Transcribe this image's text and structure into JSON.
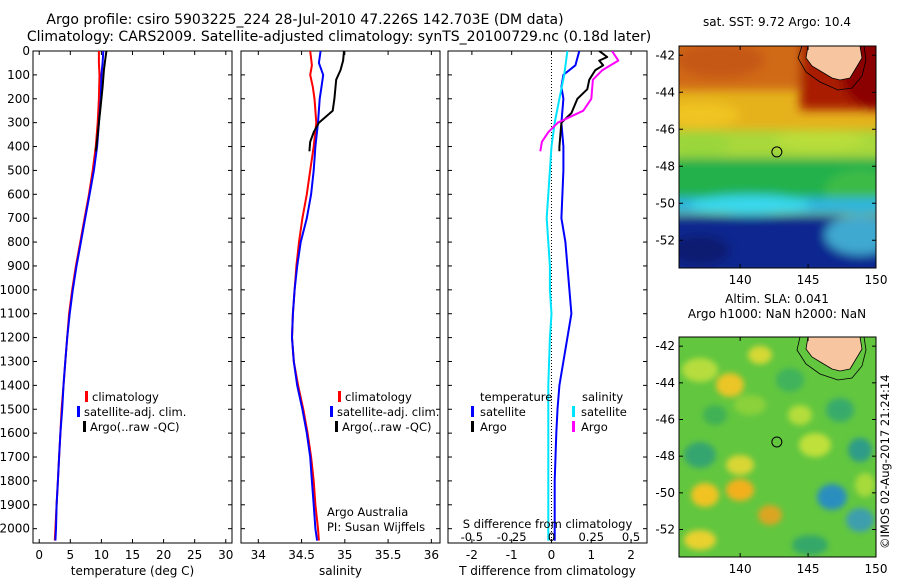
{
  "title_line1": "Argo profile: csiro 5903225_224 28-Jul-2010 47.226S 142.703E (DM data)",
  "title_line2": "Climatology: CARS2009. Satellite-adjusted climatology: synTS_20100729.nc (0.18d later)",
  "depth_ticks": [
    "0",
    "100",
    "200",
    "300",
    "400",
    "500",
    "600",
    "700",
    "800",
    "900",
    "1000",
    "1100",
    "1200",
    "1300",
    "1400",
    "1500",
    "1600",
    "1700",
    "1800",
    "1900",
    "2000"
  ],
  "legend_profile": [
    "climatology",
    "satellite-adj. clim.",
    "Argo(..raw -QC)"
  ],
  "legend_diff": {
    "temp_header": "temperature",
    "sal_header": "salinity",
    "temp_items": [
      "satellite",
      "Argo"
    ],
    "sal_items": [
      "satellite",
      "Argo"
    ]
  },
  "credit_line1": "Argo Australia",
  "credit_line2": "PI: Susan Wijffels",
  "colors": {
    "climatology": "#ff0000",
    "satellite_adj": "#0000ff",
    "argo": "#000000",
    "diff_T_sat": "#0000ff",
    "diff_T_argo": "#000000",
    "diff_S_sat": "#00e5ff",
    "diff_S_argo": "#ff00ff"
  },
  "chart_data": [
    {
      "type": "line",
      "xlabel": "temperature (deg C)",
      "ylabel": "",
      "xlim": [
        -1,
        31
      ],
      "ylim": [
        2060,
        0
      ],
      "x_ticks": [
        "0",
        "5",
        "10",
        "15",
        "20",
        "25",
        "30"
      ],
      "series": [
        {
          "name": "climatology",
          "points": [
            [
              9.6,
              0
            ],
            [
              9.6,
              50
            ],
            [
              9.7,
              100
            ],
            [
              9.6,
              200
            ],
            [
              9.4,
              300
            ],
            [
              9.1,
              400
            ],
            [
              8.6,
              500
            ],
            [
              8.0,
              600
            ],
            [
              7.3,
              700
            ],
            [
              6.6,
              800
            ],
            [
              5.9,
              900
            ],
            [
              5.3,
              1000
            ],
            [
              4.8,
              1100
            ],
            [
              4.5,
              1200
            ],
            [
              4.2,
              1300
            ],
            [
              3.9,
              1400
            ],
            [
              3.6,
              1500
            ],
            [
              3.4,
              1600
            ],
            [
              3.2,
              1700
            ],
            [
              3.0,
              1800
            ],
            [
              2.8,
              1900
            ],
            [
              2.6,
              2000
            ],
            [
              2.5,
              2050
            ]
          ]
        },
        {
          "name": "satellite-adj. clim.",
          "points": [
            [
              10.3,
              0
            ],
            [
              10.2,
              50
            ],
            [
              10.0,
              100
            ],
            [
              9.9,
              200
            ],
            [
              9.6,
              300
            ],
            [
              9.3,
              400
            ],
            [
              8.8,
              500
            ],
            [
              8.1,
              600
            ],
            [
              7.4,
              700
            ],
            [
              6.7,
              800
            ],
            [
              6.0,
              900
            ],
            [
              5.4,
              1000
            ],
            [
              4.9,
              1100
            ],
            [
              4.5,
              1200
            ],
            [
              4.2,
              1300
            ],
            [
              3.9,
              1400
            ],
            [
              3.7,
              1500
            ],
            [
              3.4,
              1600
            ],
            [
              3.2,
              1700
            ],
            [
              3.0,
              1800
            ],
            [
              2.8,
              1900
            ],
            [
              2.7,
              2000
            ],
            [
              2.6,
              2050
            ]
          ]
        },
        {
          "name": "Argo(..raw -QC)",
          "points": [
            [
              10.8,
              0
            ],
            [
              10.6,
              40
            ],
            [
              10.4,
              80
            ],
            [
              10.2,
              150
            ],
            [
              10.0,
              200
            ],
            [
              9.8,
              250
            ],
            [
              9.6,
              300
            ],
            [
              9.4,
              350
            ],
            [
              9.2,
              400
            ],
            [
              9.1,
              420
            ]
          ]
        }
      ]
    },
    {
      "type": "line",
      "xlabel": "salinity",
      "ylabel": "",
      "xlim": [
        33.8,
        36.1
      ],
      "ylim": [
        2060,
        0
      ],
      "x_ticks": [
        "34",
        "34.5",
        "35",
        "35.5",
        "36"
      ],
      "series": [
        {
          "name": "climatology",
          "points": [
            [
              34.6,
              0
            ],
            [
              34.62,
              60
            ],
            [
              34.6,
              100
            ],
            [
              34.63,
              150
            ],
            [
              34.65,
              200
            ],
            [
              34.66,
              250
            ],
            [
              34.67,
              300
            ],
            [
              34.64,
              400
            ],
            [
              34.6,
              500
            ],
            [
              34.56,
              600
            ],
            [
              34.51,
              700
            ],
            [
              34.47,
              800
            ],
            [
              34.44,
              900
            ],
            [
              34.42,
              1000
            ],
            [
              34.4,
              1100
            ],
            [
              34.39,
              1200
            ],
            [
              34.41,
              1300
            ],
            [
              34.46,
              1400
            ],
            [
              34.52,
              1500
            ],
            [
              34.57,
              1600
            ],
            [
              34.61,
              1700
            ],
            [
              34.64,
              1800
            ],
            [
              34.66,
              1900
            ],
            [
              34.69,
              2000
            ],
            [
              34.7,
              2050
            ]
          ]
        },
        {
          "name": "satellite-adj. clim.",
          "points": [
            [
              34.72,
              0
            ],
            [
              34.7,
              50
            ],
            [
              34.75,
              100
            ],
            [
              34.73,
              150
            ],
            [
              34.71,
              200
            ],
            [
              34.69,
              300
            ],
            [
              34.66,
              400
            ],
            [
              34.64,
              500
            ],
            [
              34.61,
              600
            ],
            [
              34.56,
              700
            ],
            [
              34.49,
              800
            ],
            [
              34.45,
              900
            ],
            [
              34.42,
              1000
            ],
            [
              34.4,
              1100
            ],
            [
              34.39,
              1200
            ],
            [
              34.41,
              1300
            ],
            [
              34.45,
              1400
            ],
            [
              34.51,
              1500
            ],
            [
              34.56,
              1600
            ],
            [
              34.6,
              1700
            ],
            [
              34.62,
              1800
            ],
            [
              34.64,
              1900
            ],
            [
              34.66,
              2000
            ],
            [
              34.68,
              2050
            ]
          ]
        },
        {
          "name": "Argo(..raw -QC)",
          "points": [
            [
              34.99,
              0
            ],
            [
              34.98,
              40
            ],
            [
              34.95,
              80
            ],
            [
              34.9,
              120
            ],
            [
              34.88,
              200
            ],
            [
              34.86,
              250
            ],
            [
              34.7,
              300
            ],
            [
              34.64,
              340
            ],
            [
              34.6,
              380
            ],
            [
              34.59,
              420
            ]
          ]
        }
      ]
    },
    {
      "type": "line",
      "xlabel": "T difference from climatology",
      "xlabel_top": "S difference from climatology",
      "ylabel": "",
      "xlim": [
        -2.6,
        2.4
      ],
      "ylim": [
        2060,
        0
      ],
      "x_ticks": [
        "-2",
        "-1",
        "0",
        "1",
        "2"
      ],
      "x_ticks_top": [
        "-0.5",
        "-0.25",
        "0",
        "0.25",
        "0.5"
      ],
      "series": [
        {
          "name": "satellite",
          "group": "temperature",
          "points": [
            [
              0.7,
              0
            ],
            [
              0.6,
              60
            ],
            [
              0.3,
              100
            ],
            [
              0.25,
              150
            ],
            [
              0.3,
              200
            ],
            [
              0.25,
              300
            ],
            [
              0.3,
              400
            ],
            [
              0.3,
              500
            ],
            [
              0.25,
              700
            ],
            [
              0.35,
              800
            ],
            [
              0.4,
              900
            ],
            [
              0.45,
              1000
            ],
            [
              0.5,
              1100
            ],
            [
              0.45,
              1150
            ],
            [
              0.3,
              1300
            ],
            [
              0.2,
              1400
            ],
            [
              0.15,
              1500
            ],
            [
              0.12,
              1600
            ],
            [
              0.1,
              1700
            ],
            [
              0.08,
              1800
            ],
            [
              0.08,
              1900
            ],
            [
              0.08,
              2000
            ],
            [
              0.08,
              2050
            ]
          ]
        },
        {
          "name": "Argo",
          "group": "temperature",
          "points": [
            [
              1.2,
              0
            ],
            [
              1.4,
              25
            ],
            [
              1.2,
              40
            ],
            [
              1.3,
              60
            ],
            [
              1.1,
              80
            ],
            [
              0.95,
              120
            ],
            [
              0.9,
              160
            ],
            [
              0.65,
              200
            ],
            [
              0.5,
              260
            ],
            [
              0.25,
              300
            ],
            [
              0.2,
              400
            ],
            [
              0.2,
              420
            ]
          ]
        },
        {
          "name": "satellite",
          "group": "salinity",
          "points": [
            [
              0.1,
              0
            ],
            [
              0.08,
              100
            ],
            [
              0.05,
              200
            ],
            [
              0.02,
              300
            ],
            [
              0.0,
              400
            ],
            [
              -0.01,
              500
            ],
            [
              -0.02,
              600
            ],
            [
              -0.03,
              700
            ],
            [
              -0.02,
              800
            ],
            [
              -0.01,
              900
            ],
            [
              -0.01,
              1000
            ],
            [
              0.0,
              1100
            ],
            [
              -0.01,
              1200
            ],
            [
              -0.02,
              1400
            ],
            [
              -0.02,
              1600
            ],
            [
              -0.02,
              1800
            ],
            [
              -0.02,
              2000
            ],
            [
              -0.02,
              2050
            ]
          ]
        },
        {
          "name": "Argo",
          "group": "salinity",
          "points": [
            [
              0.38,
              0
            ],
            [
              0.42,
              40
            ],
            [
              0.32,
              80
            ],
            [
              0.26,
              120
            ],
            [
              0.25,
              200
            ],
            [
              0.2,
              250
            ],
            [
              0.04,
              300
            ],
            [
              -0.02,
              340
            ],
            [
              -0.06,
              380
            ],
            [
              -0.07,
              420
            ]
          ]
        }
      ]
    },
    {
      "type": "heatmap",
      "title": "sat. SST: 9.72  Argo: 10.4",
      "xlim": [
        135.5,
        150
      ],
      "ylim": [
        -53.5,
        -41.5
      ],
      "x_ticks": [
        "140",
        "145",
        "150"
      ],
      "y_ticks": [
        "-42",
        "-44",
        "-46",
        "-48",
        "-50",
        "-52"
      ],
      "marker": {
        "lon": 142.703,
        "lat": -47.226
      }
    },
    {
      "type": "heatmap",
      "title": "Altim. SLA: 0.041",
      "subtitle": "Argo h1000: NaN h2000: NaN",
      "xlim": [
        135.5,
        150
      ],
      "ylim": [
        -53.5,
        -41.5
      ],
      "x_ticks": [
        "140",
        "145",
        "150"
      ],
      "y_ticks": [
        "-42",
        "-44",
        "-46",
        "-48",
        "-50",
        "-52"
      ],
      "marker": {
        "lon": 142.703,
        "lat": -47.226
      }
    }
  ],
  "footer_stamp": "©IMOS 02-Aug-2017 21:24:14"
}
